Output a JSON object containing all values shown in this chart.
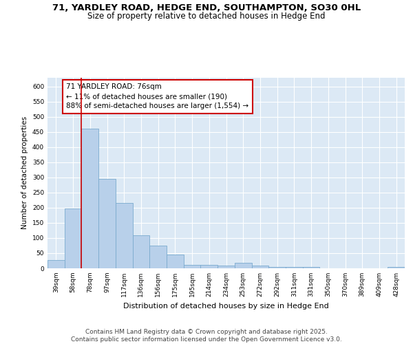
{
  "title_line1": "71, YARDLEY ROAD, HEDGE END, SOUTHAMPTON, SO30 0HL",
  "title_line2": "Size of property relative to detached houses in Hedge End",
  "xlabel": "Distribution of detached houses by size in Hedge End",
  "ylabel": "Number of detached properties",
  "categories": [
    "39sqm",
    "58sqm",
    "78sqm",
    "97sqm",
    "117sqm",
    "136sqm",
    "156sqm",
    "175sqm",
    "195sqm",
    "214sqm",
    "234sqm",
    "253sqm",
    "272sqm",
    "292sqm",
    "311sqm",
    "331sqm",
    "350sqm",
    "370sqm",
    "389sqm",
    "409sqm",
    "428sqm"
  ],
  "values": [
    28,
    198,
    460,
    295,
    215,
    110,
    75,
    45,
    12,
    12,
    10,
    18,
    8,
    5,
    5,
    5,
    0,
    0,
    0,
    0,
    5
  ],
  "bar_color": "#b8d0ea",
  "bar_edge_color": "#7aaace",
  "vline_color": "#cc0000",
  "vline_x_idx": 2,
  "annotation_text": "71 YARDLEY ROAD: 76sqm\n← 11% of detached houses are smaller (190)\n88% of semi-detached houses are larger (1,554) →",
  "annotation_box_color": "#ffffff",
  "annotation_box_edge_color": "#cc0000",
  "ylim": [
    0,
    630
  ],
  "yticks": [
    0,
    50,
    100,
    150,
    200,
    250,
    300,
    350,
    400,
    450,
    500,
    550,
    600
  ],
  "background_color": "#dce9f5",
  "plot_bg_color": "#dce9f5",
  "footer_text": "Contains HM Land Registry data © Crown copyright and database right 2025.\nContains public sector information licensed under the Open Government Licence v3.0.",
  "title_fontsize": 9.5,
  "subtitle_fontsize": 8.5,
  "axis_label_fontsize": 8,
  "tick_fontsize": 6.5,
  "annotation_fontsize": 7.5,
  "footer_fontsize": 6.5,
  "ylabel_fontsize": 7.5
}
